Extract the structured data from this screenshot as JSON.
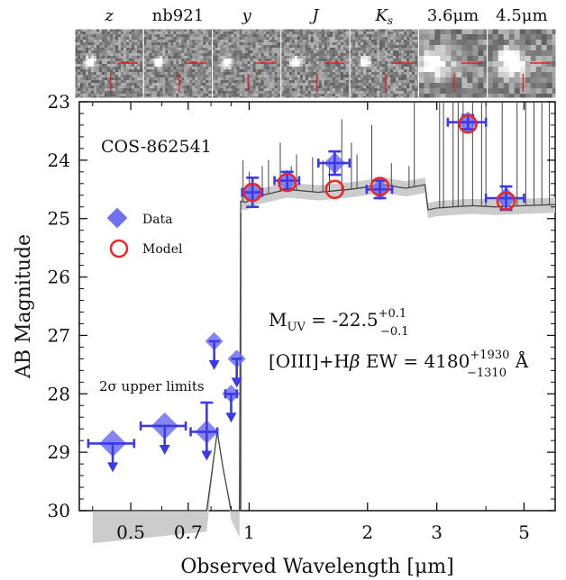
{
  "stamps": {
    "labels": [
      "z",
      "nb921",
      "y",
      "J",
      "Ks",
      "3.6μm",
      "4.5μm"
    ],
    "italic": [
      true,
      false,
      true,
      true,
      true,
      false,
      false
    ]
  },
  "panel": {
    "object_name": "COS-862541",
    "legend": {
      "data": "Data",
      "model": "Model"
    },
    "upper_limit_note": "2σ upper limits",
    "muv_text": "M",
    "muv_sub": "UV",
    "muv_value": " = -22.5",
    "muv_sup": "+0.1",
    "muv_low": "−0.1",
    "ew_prefix": "[OIII]+H",
    "ew_beta": "β",
    "ew_mid": " EW = 4180",
    "ew_sup": "+1930",
    "ew_low": "−1310",
    "ew_unit": " Å"
  },
  "colors": {
    "data": "#3a3ae6",
    "data_fill": "#6f6ff0",
    "model": "#e8282a",
    "sed": "#444444",
    "sed_band": "#cccccc"
  },
  "chart_data": {
    "type": "scatter",
    "xlabel": "Observed Wavelength [μm]",
    "ylabel": "AB Magnitude",
    "xscale": "log",
    "xlim": [
      0.37,
      6.0
    ],
    "ylim": [
      30,
      23
    ],
    "xticks": [
      0.5,
      0.7,
      1,
      2,
      3,
      5
    ],
    "xtick_labels": [
      "0.5",
      "0.7",
      "1",
      "2",
      "3",
      "5"
    ],
    "yticks": [
      23,
      24,
      25,
      26,
      27,
      28,
      29,
      30
    ],
    "series": [
      {
        "name": "Data",
        "points": [
          {
            "x": 1.02,
            "y": 24.55,
            "xerr": [
              0.06,
              0.06
            ],
            "yerr": 0.25
          },
          {
            "x": 1.25,
            "y": 24.35,
            "xerr": [
              0.09,
              0.09
            ],
            "yerr": 0.15
          },
          {
            "x": 1.65,
            "y": 24.05,
            "xerr": [
              0.15,
              0.15
            ],
            "yerr": 0.2
          },
          {
            "x": 2.15,
            "y": 24.5,
            "xerr": [
              0.16,
              0.16
            ],
            "yerr": 0.15
          },
          {
            "x": 3.6,
            "y": 23.35,
            "xerr": [
              0.4,
              0.4
            ],
            "yerr": 0.12
          },
          {
            "x": 4.5,
            "y": 24.65,
            "xerr": [
              0.5,
              0.5
            ],
            "yerr": 0.2
          }
        ]
      },
      {
        "name": "2σ upper limits",
        "points": [
          {
            "x": 0.45,
            "y": 28.85,
            "xerr": [
              0.06,
              0.06
            ]
          },
          {
            "x": 0.61,
            "y": 28.55,
            "xerr": [
              0.08,
              0.08
            ]
          },
          {
            "x": 0.78,
            "y": 28.65,
            "xerr": [
              0.07,
              0.05
            ],
            "yerr_up": 0.5
          },
          {
            "x": 0.815,
            "y": 27.1
          },
          {
            "x": 0.9,
            "y": 28.0,
            "xerr": [
              0.03,
              0.03
            ]
          },
          {
            "x": 0.93,
            "y": 27.4
          }
        ]
      },
      {
        "name": "Model",
        "points": [
          {
            "x": 1.02,
            "y": 24.55
          },
          {
            "x": 1.25,
            "y": 24.38
          },
          {
            "x": 1.65,
            "y": 24.5
          },
          {
            "x": 2.15,
            "y": 24.45
          },
          {
            "x": 3.6,
            "y": 23.38
          },
          {
            "x": 4.5,
            "y": 24.7
          }
        ]
      }
    ],
    "sed": {
      "continuum": [
        [
          0.4,
          30.6
        ],
        [
          0.78,
          30.4
        ],
        [
          0.83,
          28.65
        ],
        [
          0.86,
          29.3
        ],
        [
          0.9,
          30.2
        ],
        [
          0.945,
          30.5
        ],
        [
          0.952,
          24.7
        ],
        [
          0.98,
          24.72
        ],
        [
          1.05,
          24.62
        ],
        [
          1.25,
          24.5
        ],
        [
          1.5,
          24.55
        ],
        [
          1.8,
          24.5
        ],
        [
          2.2,
          24.42
        ],
        [
          2.5,
          24.48
        ],
        [
          2.8,
          24.42
        ],
        [
          2.85,
          24.85
        ],
        [
          3.0,
          24.82
        ],
        [
          3.3,
          24.8
        ],
        [
          3.7,
          24.78
        ],
        [
          4.2,
          24.8
        ],
        [
          5.0,
          24.78
        ],
        [
          6.0,
          24.76
        ]
      ],
      "emission_lines": [
        [
          0.965,
          24.0
        ],
        [
          1.0,
          24.2
        ],
        [
          1.08,
          24.1
        ],
        [
          1.12,
          24.0
        ],
        [
          1.2,
          23.7
        ],
        [
          1.28,
          24.1
        ],
        [
          1.32,
          23.9
        ],
        [
          1.45,
          23.95
        ],
        [
          1.54,
          24.0
        ],
        [
          1.6,
          24.0
        ],
        [
          1.72,
          23.3
        ],
        [
          1.82,
          23.7
        ],
        [
          1.88,
          23.9
        ],
        [
          2.05,
          23.4
        ],
        [
          2.3,
          24.05
        ],
        [
          2.55,
          24.1
        ],
        [
          2.63,
          23.0
        ],
        [
          3.05,
          23.0
        ],
        [
          3.12,
          23.0
        ],
        [
          3.3,
          23.0
        ],
        [
          3.4,
          23.0
        ],
        [
          3.5,
          23.0
        ],
        [
          3.7,
          23.0
        ],
        [
          3.9,
          23.0
        ],
        [
          4.0,
          23.0
        ],
        [
          4.4,
          23.0
        ],
        [
          4.8,
          23.0
        ],
        [
          5.05,
          23.0
        ],
        [
          5.3,
          23.0
        ],
        [
          5.55,
          23.0
        ],
        [
          5.8,
          23.0
        ]
      ]
    }
  }
}
